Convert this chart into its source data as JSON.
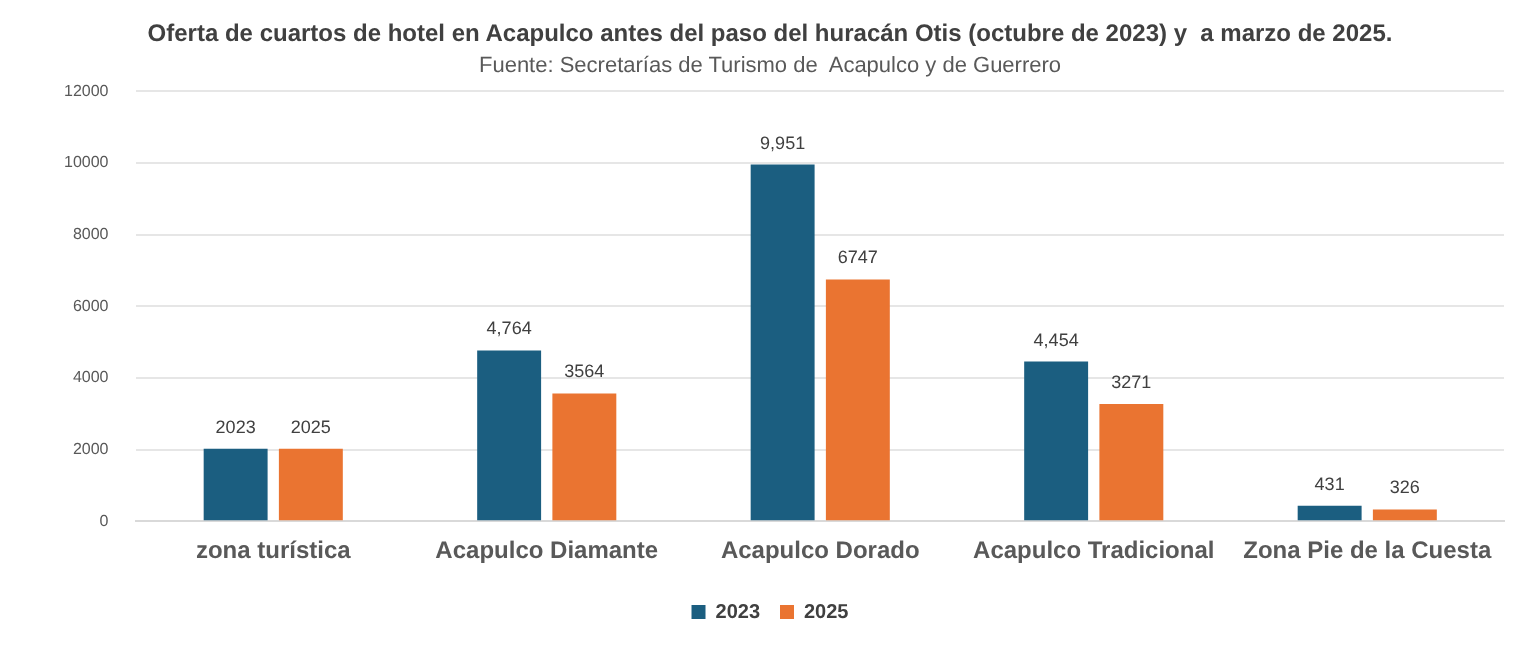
{
  "chart_data": {
    "type": "bar",
    "title": "Oferta de cuartos de hotel en Acapulco antes del paso del huracán Otis (octubre de 2023) y  a marzo de 2025.",
    "subtitle": "Fuente: Secretarías de Turismo de  Acapulco y de Guerrero",
    "categories": [
      "zona turística",
      "Acapulco Diamante",
      "Acapulco Dorado",
      "Acapulco Tradicional",
      "Zona Pie de la Cuesta"
    ],
    "series": [
      {
        "name": "2023",
        "color": "#1b5e80",
        "values": [
          2023,
          4764,
          9951,
          4454,
          431
        ],
        "value_labels": [
          "2023",
          "4,764",
          "9,951",
          "4,454",
          "431"
        ]
      },
      {
        "name": "2025",
        "color": "#ea7431",
        "values": [
          2025,
          3564,
          6747,
          3271,
          326
        ],
        "value_labels": [
          "2025",
          "3564",
          "6747",
          "3271",
          "326"
        ]
      }
    ],
    "ylim": [
      0,
      12000
    ],
    "yticks": [
      0,
      2000,
      4000,
      6000,
      8000,
      10000,
      12000
    ],
    "grid": "y",
    "legend": "bottom"
  }
}
